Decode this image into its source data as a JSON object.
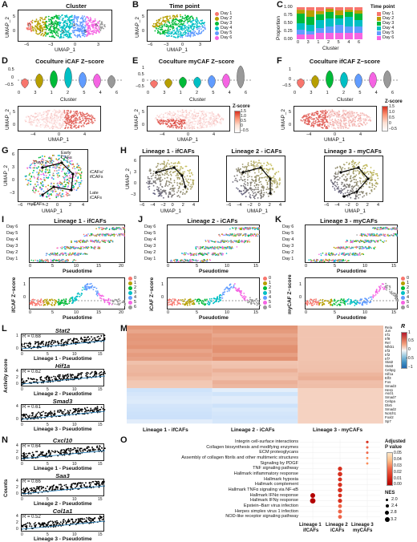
{
  "colors": {
    "c0": "#f8766d",
    "c1": "#b79f00",
    "c2": "#00ba38",
    "c3": "#00bfc4",
    "c4": "#619cff",
    "c5": "#f564e3",
    "d1": "#f8766d",
    "d2": "#b79f00",
    "d3": "#00ba38",
    "d4": "#00bfc4",
    "d5": "#619cff",
    "d6": "#f564e3",
    "red": "#d7301f",
    "blue": "#2166ac"
  },
  "panels": {
    "A": {
      "letter": "A",
      "title": "Cluster",
      "xlabel": "UMAP_1",
      "ylabel": "UMAP_2",
      "xticks": [
        "−6",
        "−3",
        "0",
        "3"
      ],
      "yticks": [
        "0",
        "5"
      ],
      "cluster_labels": [
        "0",
        "1",
        "2",
        "3",
        "4",
        "5",
        "6"
      ]
    },
    "B": {
      "letter": "B",
      "title": "Time point",
      "xlabel": "UMAP_1",
      "ylabel": "UMAP_2",
      "xticks": [
        "−6",
        "−3",
        "0",
        "3"
      ],
      "yticks": [
        "0",
        "5"
      ],
      "legend": [
        "Day 1",
        "Day 2",
        "Day 3",
        "Day 4",
        "Day 5",
        "Day 6"
      ]
    },
    "C": {
      "letter": "C",
      "xlabel": "Cluster",
      "ylabel": "Proportion",
      "yticks": [
        "0.00",
        "0.25",
        "0.50",
        "0.75",
        "1.00"
      ],
      "xticks": [
        "0",
        "3",
        "1",
        "2",
        "5",
        "4",
        "6"
      ],
      "legend_title": "Time point",
      "legend": [
        "Day 1",
        "Day 2",
        "Day 3",
        "Day 4",
        "Day 5",
        "Day 6"
      ]
    },
    "D": {
      "letter": "D",
      "title": "Coculture iCAF Z−score",
      "xlabel": "Cluster",
      "xticks": [
        "0",
        "3",
        "1",
        "2",
        "5",
        "4",
        "6"
      ],
      "yticks": [
        "0.5",
        "0",
        "−0.5"
      ],
      "umap_xlabel": "UMAP_1",
      "umap_ylabel": "UMAP_2",
      "umap_xticks": [
        "−4",
        "0",
        "4"
      ],
      "umap_yticks": [
        "0",
        "5"
      ]
    },
    "E": {
      "letter": "E",
      "title": "Coculture myCAF Z−score",
      "xlabel": "Cluster",
      "xticks": [
        "0",
        "3",
        "1",
        "2",
        "5",
        "4",
        "6"
      ],
      "yticks": [
        "1",
        "0.5",
        "0",
        "−0.5"
      ],
      "umap_xlabel": "UMAP_1",
      "umap_ylabel": "UMAP_2",
      "umap_xticks": [
        "−4",
        "0",
        "4"
      ],
      "umap_yticks": [
        "0",
        "5"
      ],
      "cbar_title": "Z-score",
      "cbar_ticks": [
        "1.5",
        "1.0",
        "0.5",
        "0",
        "−0.5"
      ]
    },
    "F": {
      "letter": "F",
      "title": "Coculture ifCAF Z−score",
      "xlabel": "Cluster",
      "xticks": [
        "0",
        "3",
        "1",
        "2",
        "5",
        "4",
        "6"
      ],
      "yticks": [
        "1",
        "0",
        "−0.5"
      ],
      "umap_xlabel": "UMAP_1",
      "umap_ylabel": "UMAP_2",
      "umap_xticks": [
        "−4",
        "0",
        "4"
      ],
      "umap_yticks": [
        "0",
        "5"
      ],
      "cbar_title": "Z-score",
      "cbar_ticks": [
        "1.5",
        "1.0",
        "0.5",
        "0",
        "−0.5"
      ],
      "cbar2_ticks": [
        "1.5",
        "1.0",
        "0.5",
        "0",
        "−0.5"
      ]
    },
    "G": {
      "letter": "G",
      "xlabel": "UMAP_1",
      "ylabel": "UMAP_2",
      "xticks": [
        "−6",
        "−4",
        "−2",
        "0",
        "2",
        "4"
      ],
      "yticks": [
        "−3",
        "0",
        "3",
        "6"
      ],
      "annotations": [
        "Days 2-3",
        "Early CAFs",
        "iCAFs/ ifCAFs",
        "Late iCAFs",
        "myCAFs"
      ]
    },
    "H": {
      "letter": "H",
      "titles": [
        "Lineage 1 - ifCAFs",
        "Lineage 2 - iCAFs",
        "Lineage 3 - myCAFs"
      ],
      "xlabel": "UMAP_1",
      "ylabel": "UMAP_2",
      "xticks": [
        "−6",
        "−4",
        "−2",
        "0",
        "2",
        "4"
      ],
      "xticks3": [
        "−6",
        "−4",
        "−2",
        "0",
        "2",
        "4"
      ],
      "yticks": [
        "−3",
        "0",
        "3",
        "6"
      ]
    },
    "I": {
      "letter": "I",
      "title": "Lineage 1 - ifCAFs",
      "xlabel": "Pseudotime",
      "xticks": [
        "0",
        "5",
        "10",
        "15",
        "20"
      ],
      "days": [
        "Day 6",
        "Day 5",
        "Day 4",
        "Day 3",
        "Day 2",
        "Day 1"
      ],
      "ylabel2": "ifCAF Z−score",
      "yticks2": [
        "1",
        "0"
      ],
      "legend": [
        "0",
        "1",
        "2",
        "3",
        "4",
        "5",
        "6"
      ]
    },
    "J": {
      "letter": "J",
      "title": "Lineage 2 - iCAFs",
      "xlabel": "Pseudotime",
      "xticks": [
        "0",
        "5",
        "10",
        "15"
      ],
      "days": [
        "Day 6",
        "Day 5",
        "Day 4",
        "Day 3",
        "Day 2",
        "Day 1"
      ],
      "ylabel2": "iCAF Z−score",
      "yticks2": [
        "1",
        "0"
      ],
      "legend": [
        "0",
        "1",
        "2",
        "3",
        "4",
        "5",
        "6"
      ]
    },
    "K": {
      "letter": "K",
      "title": "Lineage 3 - myCAFs",
      "xlabel": "Pseudotime",
      "xticks": [
        "0",
        "5",
        "10",
        "15"
      ],
      "days": [
        "Day 6",
        "Day 5",
        "Day 4",
        "Day 3",
        "Day 2",
        "Day 1"
      ],
      "ylabel2": "myCAF Z−score",
      "yticks2": [
        "1",
        "0"
      ],
      "legend": [
        "0",
        "1",
        "2",
        "3",
        "4",
        "5",
        "6"
      ]
    },
    "L": {
      "letter": "L",
      "ylabel": "Activity score",
      "plots": [
        {
          "gene": "Stat2",
          "r": "R = 0.68",
          "xlabel": "Lineage 1 - Pseudotime",
          "yticks": [
            "1",
            "0"
          ],
          "xticks": [
            "0",
            "5",
            "10",
            "15"
          ]
        },
        {
          "gene": "Hif1a",
          "r": "R = 0.62",
          "xlabel": "Lineage 2 - Pseudotime",
          "yticks": [
            "4",
            "2",
            "0"
          ],
          "xticks": [
            "0",
            "5",
            "10",
            "15"
          ]
        },
        {
          "gene": "Smad3",
          "r": "R = 0.61",
          "xlabel": "Lineage 3 - Pseudotime",
          "yticks": [
            "4",
            "0"
          ],
          "xticks": [
            "0",
            "5",
            "10",
            "15"
          ]
        }
      ]
    },
    "M": {
      "letter": "M",
      "xlabels": [
        "Lineage 1 - ifCAFs",
        "Lineage 2 - iCAFs",
        "Lineage 3 - myCAFs"
      ],
      "genes": [
        "Rela",
        "Jun",
        "Irf1",
        "Irf9",
        "Rel",
        "Nfkb1",
        "Irf3",
        "Irf2",
        "Irf7",
        "Stat2",
        "Stat3",
        "Cebpg",
        "Hif1a",
        "Elf3",
        "Fos",
        "Smad3",
        "Hes1",
        "Ascl1",
        "Smad7",
        "Cebpa",
        "Dlx5",
        "Smad2",
        "Notch1",
        "Foxl2",
        "Sp7"
      ],
      "cbar_title": "R",
      "cbar_ticks": [
        "1",
        "0.5",
        "0",
        "−0.5",
        "−1"
      ]
    },
    "N": {
      "letter": "N",
      "ylabel": "Counts",
      "plots": [
        {
          "gene": "Cxcl10",
          "r": "R = 0.64",
          "xlabel": "Lineage 1 - Pseudotime",
          "yticks": [
            "4",
            "2",
            "0"
          ],
          "xticks": [
            "0",
            "5",
            "10",
            "15"
          ]
        },
        {
          "gene": "Saa3",
          "r": "R = 0.66",
          "xlabel": "Lineage 2 - Pseudotime",
          "yticks": [
            "4",
            "2",
            "0"
          ],
          "xticks": [
            "0",
            "5",
            "10",
            "15"
          ]
        },
        {
          "gene": "Col1a1",
          "r": "R = 0.52",
          "xlabel": "Lineage 3 - Pseudotime",
          "yticks": [
            "4",
            "2",
            "0"
          ],
          "xticks": [
            "0",
            "5",
            "10",
            "15"
          ]
        }
      ]
    },
    "O": {
      "letter": "O",
      "terms": [
        "Integrin cell-surface interactions",
        "Collagen biosynthesis and modifying enzymes",
        "ECM proteoglycans",
        "Assembly of collagen fibrils and other multimeric structures",
        "Signaling by PDGF",
        "TNF signaling pathway",
        "Hallmark inflammatory response",
        "Hallmark hypoxia",
        "Hallmark complement",
        "Hallmark TNFα signaling via NF-κB",
        "Hallmark IFNα response",
        "Hallmark IFNγ response",
        "Epstein–Barr virus infection",
        "Herpes simplex virus 1 infection",
        "NOD-like receptor signaling pathway"
      ],
      "xlabels": [
        [
          "Lineage 1",
          "ifCAFs"
        ],
        [
          "Lineage 2",
          "iCAFs"
        ],
        [
          "Lineage 3",
          "myCAFs"
        ]
      ],
      "padj_title": [
        "Adjusted",
        "P value"
      ],
      "padj_ticks": [
        "0.05",
        "0.04",
        "0.03",
        "0.02",
        "0.01",
        "0.00"
      ],
      "nes_title": "NES",
      "nes_ticks": [
        "2.0",
        "2.4",
        "2.8",
        "3.2"
      ]
    }
  }
}
